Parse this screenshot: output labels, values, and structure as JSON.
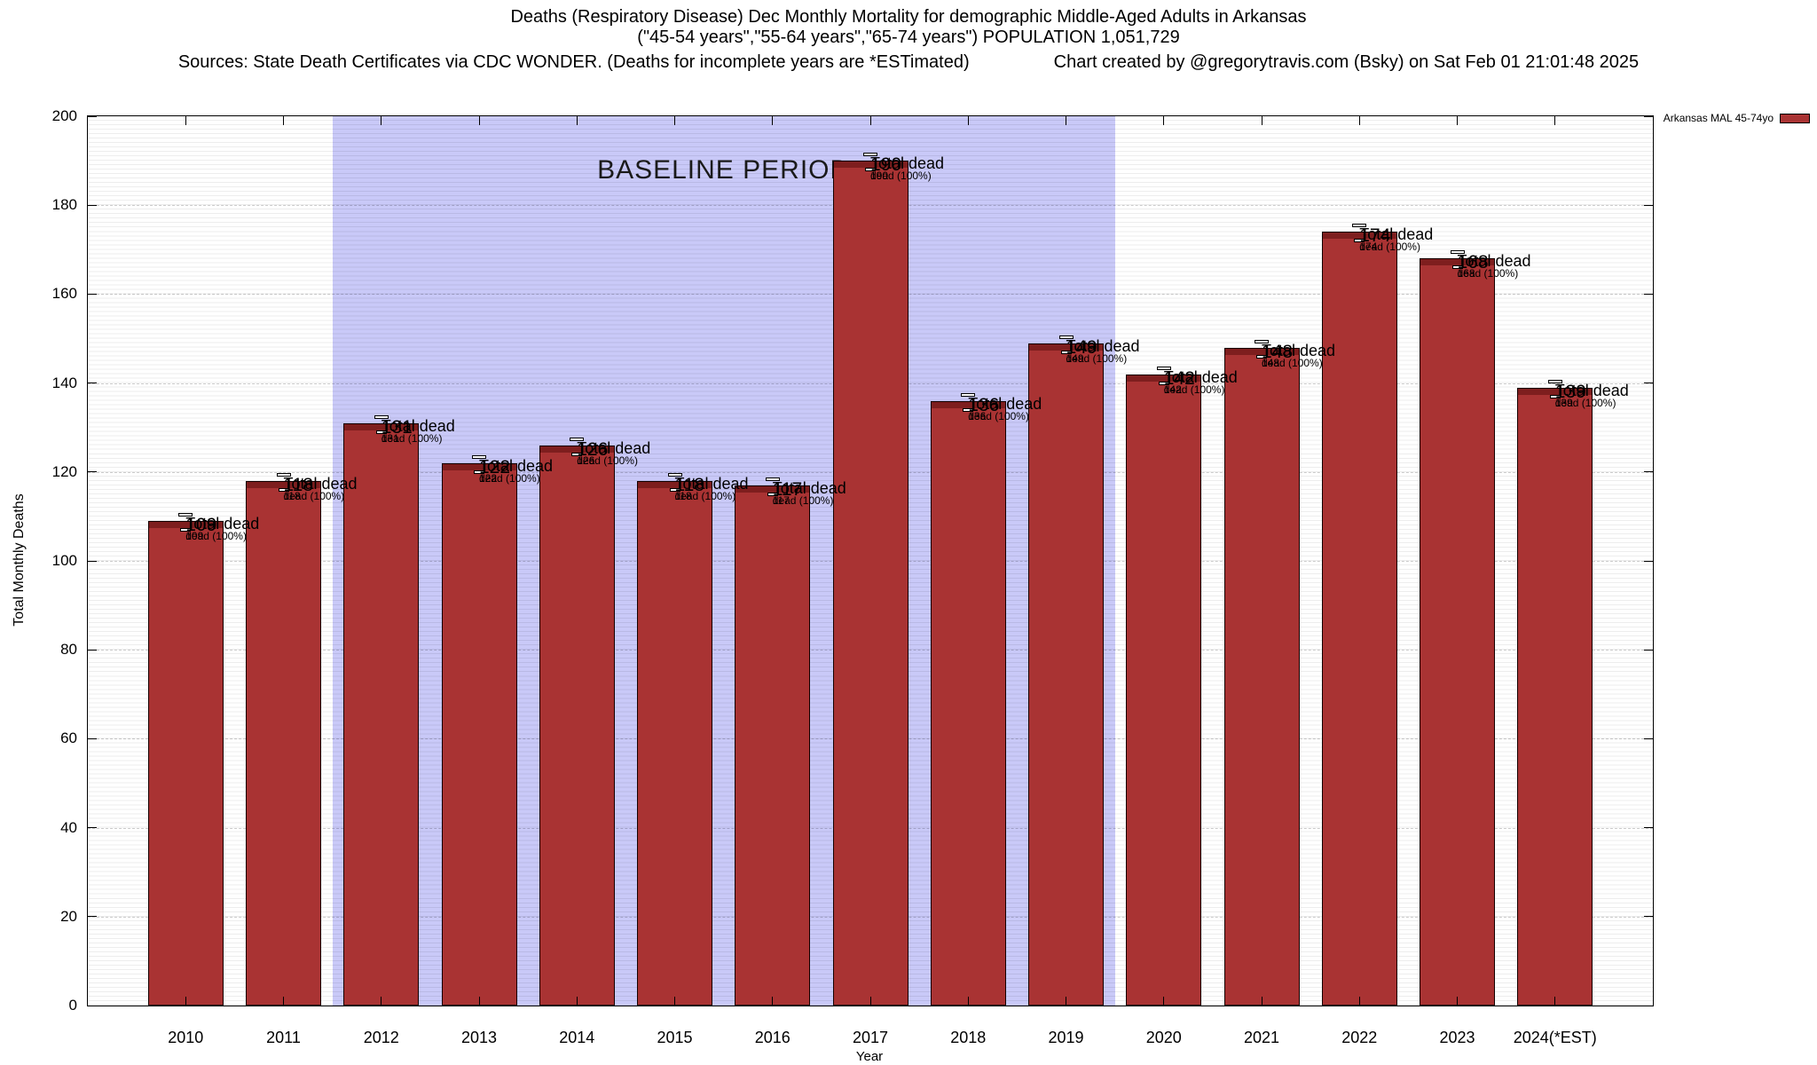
{
  "header": {
    "title_line1": "Deaths (Respiratory Disease) Dec Monthly Mortality for demographic Middle-Aged Adults in Arkansas",
    "title_line2": "(\"45-54 years\",\"55-64 years\",\"65-74 years\") POPULATION 1,051,729",
    "sources_note": "Sources: State Death Certificates via CDC WONDER. (Deaths for incomplete years are *ESTimated)",
    "credit": "Chart created by @gregorytravis.com (Bsky) on Sat Feb 01 21:01:48 2025"
  },
  "chart_data": {
    "type": "bar",
    "title": "Deaths (Respiratory Disease) Dec Monthly Mortality for demographic Middle-Aged Adults in Arkansas",
    "xlabel": "Year",
    "ylabel": "Total Monthly Deaths",
    "ylim": [
      0,
      200
    ],
    "yticks": [
      0,
      20,
      40,
      60,
      80,
      100,
      120,
      140,
      160,
      180,
      200
    ],
    "categories": [
      "2010",
      "2011",
      "2012",
      "2013",
      "2014",
      "2015",
      "2016",
      "2017",
      "2018",
      "2019",
      "2020",
      "2021",
      "2022",
      "2023",
      "2024(*EST)"
    ],
    "values": [
      109,
      118,
      131,
      122,
      126,
      118,
      117,
      190,
      136,
      149,
      142,
      148,
      174,
      168,
      139
    ],
    "bar_label_line2": "Total dead",
    "bar_inner_label_line2": "dead (100%)",
    "bar_color": "#A93333",
    "bar_cap_color": "#7E1E1E",
    "baseline_region": {
      "label": "BASELINE PERIOD",
      "start_category": "2012",
      "end_category": "2019",
      "color": "#C9C9F8"
    },
    "legend": [
      {
        "label": "Arkansas MAL 45-74yo",
        "color": "#A93333",
        "position": "top-right"
      }
    ],
    "grid": true
  }
}
